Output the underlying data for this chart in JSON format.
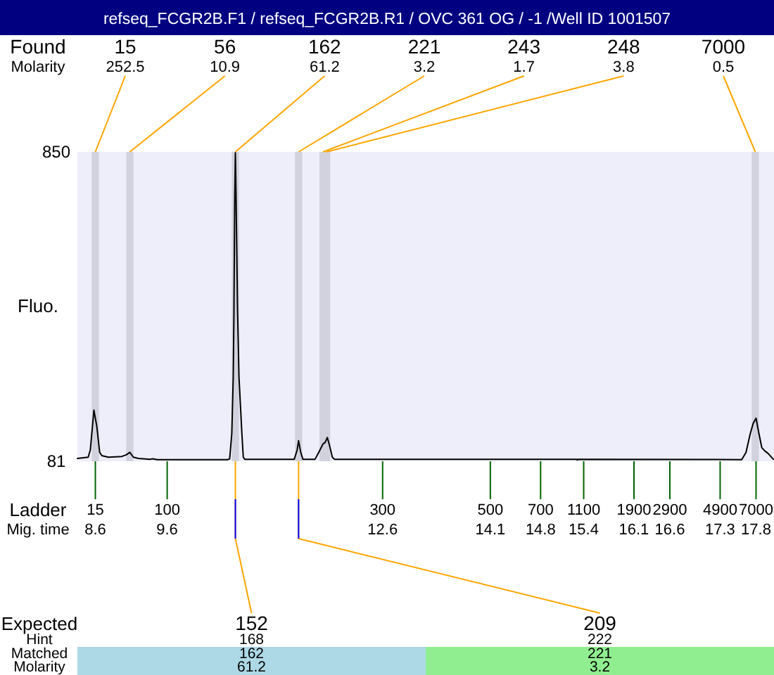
{
  "chart_data": {
    "type": "line",
    "title": "refseq_FCGR2B.F1 / refseq_FCGR2B.R1 / OVC 361 OG / -1 /Well ID 1001507",
    "ylabel": "Fluo.",
    "xlabel": "Mig. time",
    "color": "#000000",
    "x": [
      8.35,
      8.5,
      8.53,
      8.58,
      8.62,
      8.66,
      8.69,
      8.78,
      8.97,
      9.03,
      9.08,
      9.13,
      9.2,
      9.36,
      9.4,
      9.46,
      10.44,
      10.47,
      10.5,
      10.52,
      10.53,
      10.54,
      10.55,
      10.56,
      10.58,
      10.6,
      10.62,
      10.64,
      10.66,
      10.68,
      11.37,
      11.41,
      11.43,
      11.46,
      11.49,
      11.66,
      11.71,
      11.77,
      11.8,
      11.83,
      11.86,
      11.9,
      11.93,
      13.15,
      15.3,
      15.31,
      15.32,
      17.6,
      17.66,
      17.72,
      17.76,
      17.8,
      17.84,
      17.88,
      17.92,
      17.97,
      18.04
    ],
    "values": [
      88,
      91,
      109,
      208,
      168,
      103,
      95,
      91,
      93,
      97,
      103,
      91,
      88,
      86,
      87,
      85,
      85,
      87,
      150,
      290,
      452,
      720,
      848,
      732,
      458,
      291,
      221,
      151,
      91,
      86,
      86,
      109,
      132,
      103,
      86,
      86,
      103,
      124,
      128,
      140,
      121,
      91,
      86,
      86,
      86,
      84,
      86,
      85,
      103,
      150,
      175,
      188,
      150,
      115,
      107,
      100,
      86
    ],
    "xlim": [
      8.35,
      18.05
    ],
    "ylim": [
      81,
      850
    ],
    "yticks": [
      81,
      850
    ],
    "xticks": [
      8.6,
      9.6,
      12.6,
      14.1,
      14.8,
      15.4,
      16.1,
      16.6,
      17.3,
      17.8
    ],
    "bands": [
      {
        "axis": "x",
        "from": 8.55,
        "to": 8.65,
        "label": "15",
        "color": "#d2d2de"
      },
      {
        "axis": "x",
        "from": 9.03,
        "to": 9.13,
        "label": "56",
        "color": "#d2d2de"
      },
      {
        "axis": "x",
        "from": 10.5,
        "to": 10.6,
        "label": "162",
        "color": "#d2d2de"
      },
      {
        "axis": "x",
        "from": 11.38,
        "to": 11.48,
        "label": "221",
        "color": "#d2d2de"
      },
      {
        "axis": "x",
        "from": 11.72,
        "to": 11.82,
        "label": "243",
        "color": "#d2d2de"
      },
      {
        "axis": "x",
        "from": 11.77,
        "to": 11.87,
        "label": "248",
        "color": "#d2d2de"
      },
      {
        "axis": "x",
        "from": 17.74,
        "to": 17.84,
        "label": "7000",
        "color": "#d2d2de"
      }
    ],
    "annotations": [
      "Found",
      "Molarity",
      "Ladder",
      "15",
      "100",
      "300",
      "500",
      "700",
      "1100",
      "1900",
      "2900",
      "4900",
      "7000",
      "Expected",
      "Hint",
      "Matched",
      "Molarity",
      "168",
      "162",
      "61.2",
      "222",
      "221",
      "3.2",
      {
        "text": "252.5",
        "x": 8.6,
        "y": 850
      },
      {
        "text": "10.9",
        "x": 9.08,
        "y": 850
      },
      {
        "text": "61.2",
        "x": 10.55,
        "y": 850
      },
      {
        "text": "3.2",
        "x": 11.43,
        "y": 850
      },
      {
        "text": "1.7",
        "x": 11.77,
        "y": 850
      },
      {
        "text": "3.8",
        "x": 11.82,
        "y": 850
      },
      {
        "text": "0.5",
        "x": 17.79,
        "y": 850
      },
      {
        "text": "152",
        "x": 10.55,
        "y": 81
      },
      {
        "text": "209",
        "x": 11.43,
        "y": 81
      }
    ]
  }
}
